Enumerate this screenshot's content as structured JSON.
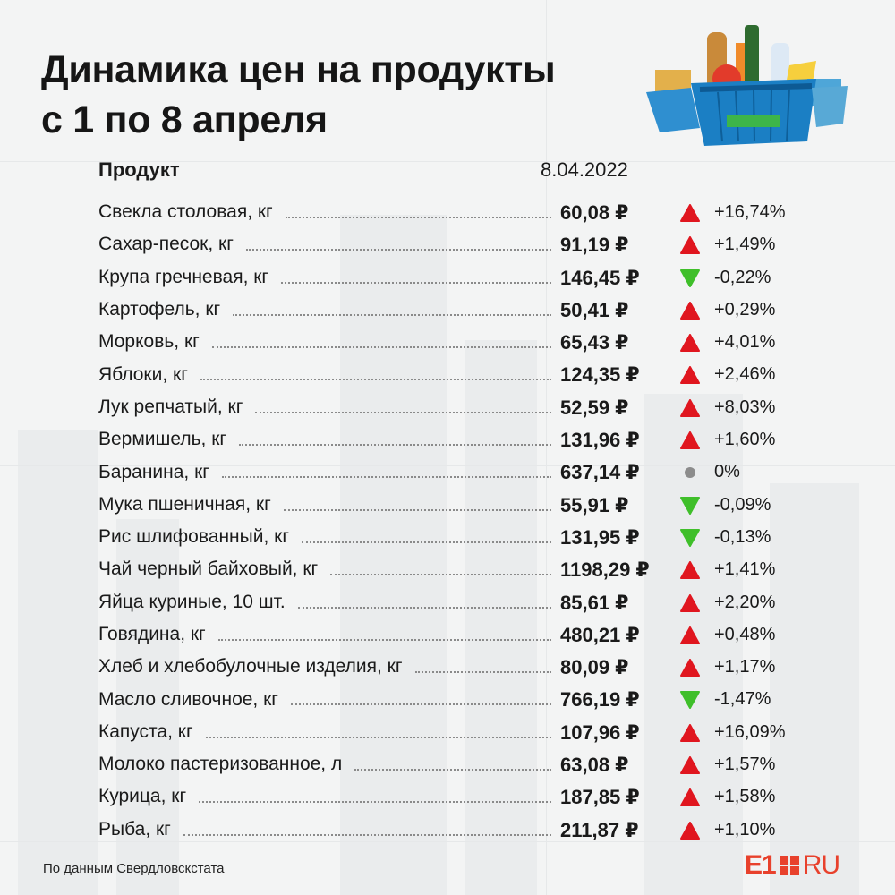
{
  "title": {
    "line1": "Динамика цен на продукты",
    "line2": "с 1 по 8 апреля"
  },
  "table": {
    "header_product": "Продукт",
    "header_date": "8.04.2022",
    "rows": [
      {
        "name": "Свекла столовая, кг",
        "price": "60,08 ₽",
        "trend": "up",
        "change": "+16,74%"
      },
      {
        "name": "Сахар-песок, кг",
        "price": "91,19 ₽",
        "trend": "up",
        "change": "+1,49%"
      },
      {
        "name": "Крупа гречневая, кг",
        "price": "146,45 ₽",
        "trend": "down",
        "change": "-0,22%"
      },
      {
        "name": "Картофель, кг",
        "price": "50,41 ₽",
        "trend": "up",
        "change": "+0,29%"
      },
      {
        "name": "Морковь, кг",
        "price": "65,43 ₽",
        "trend": "up",
        "change": "+4,01%"
      },
      {
        "name": "Яблоки, кг",
        "price": "124,35 ₽",
        "trend": "up",
        "change": "+2,46%"
      },
      {
        "name": "Лук репчатый, кг",
        "price": "52,59 ₽",
        "trend": "up",
        "change": "+8,03%"
      },
      {
        "name": "Вермишель, кг",
        "price": "131,96 ₽",
        "trend": "up",
        "change": "+1,60%"
      },
      {
        "name": "Баранина, кг",
        "price": "637,14 ₽",
        "trend": "flat",
        "change": "0%"
      },
      {
        "name": "Мука пшеничная, кг",
        "price": "55,91 ₽",
        "trend": "down",
        "change": "-0,09%"
      },
      {
        "name": "Рис шлифованный, кг",
        "price": "131,95 ₽",
        "trend": "down",
        "change": "-0,13%"
      },
      {
        "name": "Чай черный байховый, кг",
        "price": "1198,29 ₽",
        "trend": "up",
        "change": "+1,41%"
      },
      {
        "name": "Яйца куриные, 10 шт.",
        "price": "85,61 ₽",
        "trend": "up",
        "change": "+2,20%"
      },
      {
        "name": "Говядина, кг",
        "price": "480,21 ₽",
        "trend": "up",
        "change": "+0,48%"
      },
      {
        "name": "Хлеб и хлебобулочные изделия, кг",
        "price": "80,09 ₽",
        "trend": "up",
        "change": "+1,17%"
      },
      {
        "name": "Масло сливочное, кг",
        "price": "766,19 ₽",
        "trend": "down",
        "change": "-1,47%"
      },
      {
        "name": "Капуста, кг",
        "price": "107,96 ₽",
        "trend": "up",
        "change": "+16,09%"
      },
      {
        "name": "Молоко пастеризованное, л",
        "price": "63,08 ₽",
        "trend": "up",
        "change": "+1,57%"
      },
      {
        "name": "Курица, кг",
        "price": "187,85 ₽",
        "trend": "up",
        "change": "+1,58%"
      },
      {
        "name": "Рыба, кг",
        "price": "211,87 ₽",
        "trend": "up",
        "change": "+1,10%"
      }
    ]
  },
  "footer": {
    "source": "По данным Свердловскстата",
    "logo_e1": "E1",
    "logo_ru": "RU"
  },
  "colors": {
    "up": "#e0161f",
    "down": "#3fbf2a",
    "flat": "#8c8c8c",
    "brand": "#e8412c"
  },
  "icons": {
    "up": "red-up-triangle-icon",
    "down": "green-down-triangle-icon",
    "flat": "gray-dot-icon",
    "basket": "grocery-basket-icon"
  }
}
